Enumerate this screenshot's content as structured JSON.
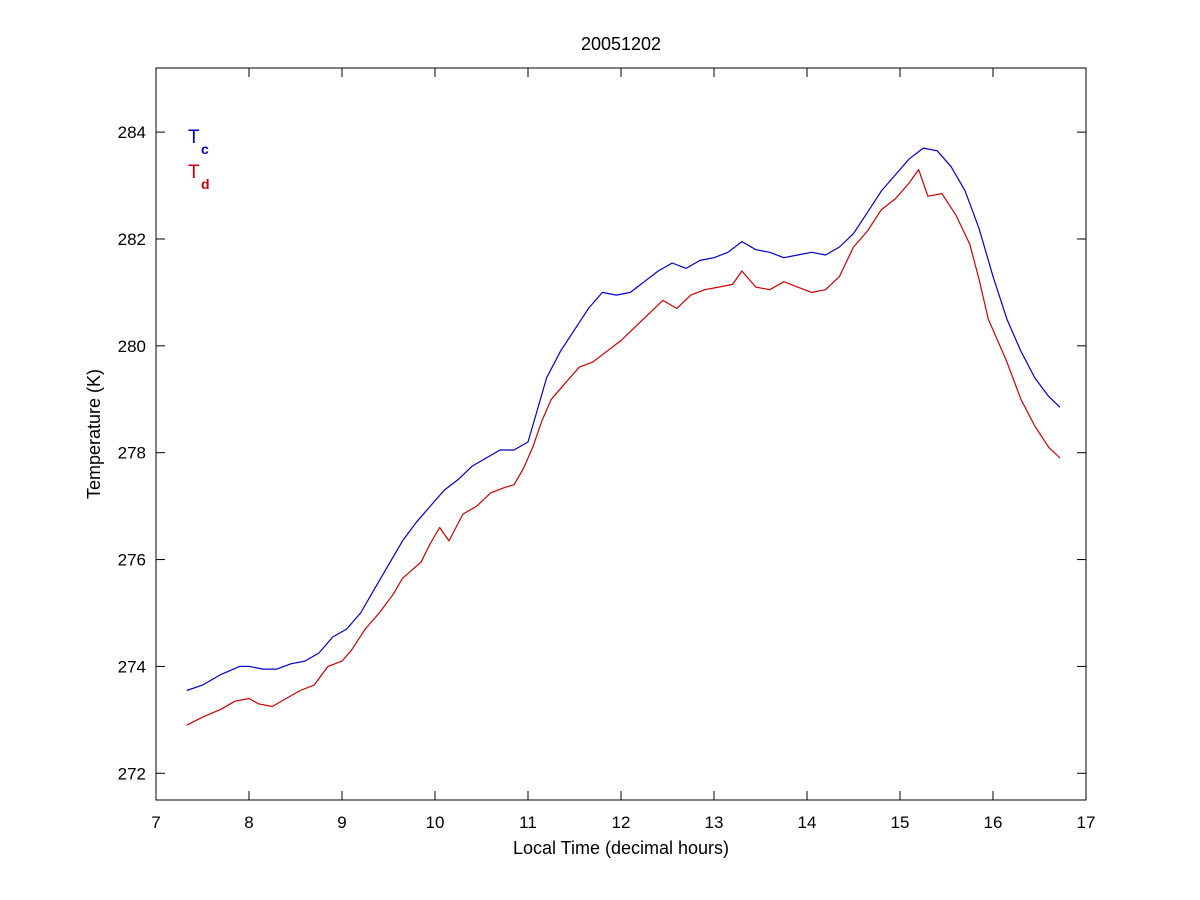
{
  "chart_data": {
    "type": "line",
    "title": "20051202",
    "xlabel": "Local Time (decimal hours)",
    "ylabel": "Temperature (K)",
    "xlim": [
      7,
      17
    ],
    "ylim": [
      271.5,
      285.2
    ],
    "xticks": [
      7,
      8,
      9,
      10,
      11,
      12,
      13,
      14,
      15,
      16,
      17
    ],
    "yticks": [
      272,
      274,
      276,
      278,
      280,
      282,
      284
    ],
    "grid": false,
    "legend": {
      "placement": "top-left",
      "style": "colored-text"
    },
    "series": [
      {
        "name": "T",
        "subscript": "c",
        "color": "#0000cc",
        "points": [
          [
            7.33,
            273.55
          ],
          [
            7.5,
            273.65
          ],
          [
            7.7,
            273.85
          ],
          [
            7.9,
            274.0
          ],
          [
            8.0,
            274.0
          ],
          [
            8.15,
            273.95
          ],
          [
            8.3,
            273.95
          ],
          [
            8.45,
            274.05
          ],
          [
            8.6,
            274.1
          ],
          [
            8.75,
            274.25
          ],
          [
            8.9,
            274.55
          ],
          [
            9.05,
            274.7
          ],
          [
            9.2,
            275.0
          ],
          [
            9.35,
            275.45
          ],
          [
            9.5,
            275.9
          ],
          [
            9.65,
            276.35
          ],
          [
            9.8,
            276.7
          ],
          [
            9.95,
            277.0
          ],
          [
            10.1,
            277.3
          ],
          [
            10.25,
            277.5
          ],
          [
            10.4,
            277.75
          ],
          [
            10.55,
            277.9
          ],
          [
            10.7,
            278.05
          ],
          [
            10.85,
            278.05
          ],
          [
            11.0,
            278.2
          ],
          [
            11.1,
            278.8
          ],
          [
            11.2,
            279.4
          ],
          [
            11.35,
            279.9
          ],
          [
            11.5,
            280.3
          ],
          [
            11.65,
            280.7
          ],
          [
            11.8,
            281.0
          ],
          [
            11.95,
            280.95
          ],
          [
            12.1,
            281.0
          ],
          [
            12.25,
            281.2
          ],
          [
            12.4,
            281.4
          ],
          [
            12.55,
            281.55
          ],
          [
            12.7,
            281.45
          ],
          [
            12.85,
            281.6
          ],
          [
            13.0,
            281.65
          ],
          [
            13.15,
            281.75
          ],
          [
            13.3,
            281.95
          ],
          [
            13.45,
            281.8
          ],
          [
            13.6,
            281.75
          ],
          [
            13.75,
            281.65
          ],
          [
            13.9,
            281.7
          ],
          [
            14.05,
            281.75
          ],
          [
            14.2,
            281.7
          ],
          [
            14.35,
            281.85
          ],
          [
            14.5,
            282.1
          ],
          [
            14.65,
            282.5
          ],
          [
            14.8,
            282.9
          ],
          [
            14.95,
            283.2
          ],
          [
            15.1,
            283.5
          ],
          [
            15.25,
            283.7
          ],
          [
            15.4,
            283.65
          ],
          [
            15.55,
            283.35
          ],
          [
            15.7,
            282.9
          ],
          [
            15.85,
            282.2
          ],
          [
            16.0,
            281.3
          ],
          [
            16.15,
            280.5
          ],
          [
            16.3,
            279.9
          ],
          [
            16.45,
            279.4
          ],
          [
            16.6,
            279.05
          ],
          [
            16.72,
            278.85
          ]
        ]
      },
      {
        "name": "T",
        "subscript": "d",
        "color": "#cc0000",
        "points": [
          [
            7.33,
            272.9
          ],
          [
            7.5,
            273.05
          ],
          [
            7.7,
            273.2
          ],
          [
            7.85,
            273.35
          ],
          [
            8.0,
            273.4
          ],
          [
            8.1,
            273.3
          ],
          [
            8.25,
            273.25
          ],
          [
            8.4,
            273.4
          ],
          [
            8.55,
            273.55
          ],
          [
            8.7,
            273.65
          ],
          [
            8.85,
            274.0
          ],
          [
            9.0,
            274.1
          ],
          [
            9.1,
            274.3
          ],
          [
            9.25,
            274.7
          ],
          [
            9.4,
            275.0
          ],
          [
            9.55,
            275.35
          ],
          [
            9.65,
            275.65
          ],
          [
            9.75,
            275.8
          ],
          [
            9.85,
            275.95
          ],
          [
            9.95,
            276.3
          ],
          [
            10.05,
            276.6
          ],
          [
            10.15,
            276.35
          ],
          [
            10.3,
            276.85
          ],
          [
            10.45,
            277.0
          ],
          [
            10.6,
            277.25
          ],
          [
            10.75,
            277.35
          ],
          [
            10.85,
            277.4
          ],
          [
            10.95,
            277.7
          ],
          [
            11.05,
            278.1
          ],
          [
            11.15,
            278.6
          ],
          [
            11.25,
            279.0
          ],
          [
            11.4,
            279.3
          ],
          [
            11.55,
            279.6
          ],
          [
            11.7,
            279.7
          ],
          [
            11.85,
            279.9
          ],
          [
            12.0,
            280.1
          ],
          [
            12.15,
            280.35
          ],
          [
            12.3,
            280.6
          ],
          [
            12.45,
            280.85
          ],
          [
            12.6,
            280.7
          ],
          [
            12.75,
            280.95
          ],
          [
            12.9,
            281.05
          ],
          [
            13.05,
            281.1
          ],
          [
            13.2,
            281.15
          ],
          [
            13.3,
            281.4
          ],
          [
            13.45,
            281.1
          ],
          [
            13.6,
            281.05
          ],
          [
            13.75,
            281.2
          ],
          [
            13.9,
            281.1
          ],
          [
            14.05,
            281.0
          ],
          [
            14.2,
            281.05
          ],
          [
            14.35,
            281.3
          ],
          [
            14.5,
            281.85
          ],
          [
            14.65,
            282.15
          ],
          [
            14.8,
            282.55
          ],
          [
            14.95,
            282.75
          ],
          [
            15.1,
            283.05
          ],
          [
            15.2,
            283.3
          ],
          [
            15.3,
            282.8
          ],
          [
            15.45,
            282.85
          ],
          [
            15.6,
            282.45
          ],
          [
            15.75,
            281.9
          ],
          [
            15.85,
            281.25
          ],
          [
            15.95,
            280.5
          ],
          [
            16.05,
            280.1
          ],
          [
            16.15,
            279.7
          ],
          [
            16.3,
            279.0
          ],
          [
            16.45,
            278.5
          ],
          [
            16.6,
            278.1
          ],
          [
            16.72,
            277.9
          ]
        ]
      }
    ]
  }
}
